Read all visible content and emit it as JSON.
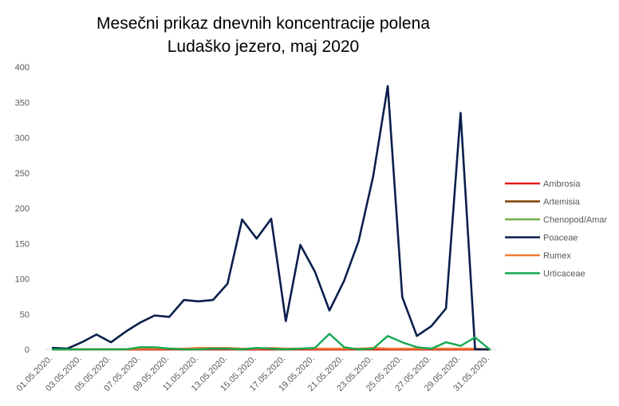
{
  "chart_data": {
    "type": "line",
    "title": [
      "Mesečni prikaz dnevnih koncentracije polena",
      "Ludaško jezero, maj 2020"
    ],
    "xlabel": "",
    "ylabel": "",
    "ylim": [
      0,
      400
    ],
    "yticks": [
      0,
      50,
      100,
      150,
      200,
      250,
      300,
      350,
      400
    ],
    "grid": false,
    "legend_position": "right",
    "x": [
      "01.05.2020.",
      "02.05.2020.",
      "03.05.2020.",
      "04.05.2020.",
      "05.05.2020.",
      "06.05.2020.",
      "07.05.2020.",
      "08.05.2020.",
      "09.05.2020.",
      "10.05.2020.",
      "11.05.2020.",
      "12.05.2020.",
      "13.05.2020.",
      "14.05.2020.",
      "15.05.2020.",
      "16.05.2020.",
      "17.05.2020.",
      "18.05.2020.",
      "19.05.2020.",
      "20.05.2020.",
      "21.05.2020.",
      "22.05.2020.",
      "23.05.2020.",
      "24.05.2020.",
      "25.05.2020.",
      "26.05.2020.",
      "27.05.2020.",
      "28.05.2020.",
      "29.05.2020.",
      "30.05.2020.",
      "31.05.2020."
    ],
    "xtick_labels": [
      "01.05.2020.",
      "03.05.2020.",
      "05.05.2020.",
      "07.05.2020.",
      "09.05.2020.",
      "11.05.2020.",
      "13.05.2020.",
      "15.05.2020.",
      "17.05.2020.",
      "19.05.2020.",
      "21.05.2020.",
      "23.05.2020.",
      "25.05.2020.",
      "27.05.2020.",
      "29.05.2020.",
      "31.05.2020."
    ],
    "series": [
      {
        "name": "Ambrosia",
        "color": "#e31a1c",
        "values": [
          0,
          0,
          0,
          0,
          0,
          0,
          0,
          0,
          0,
          0,
          0,
          0,
          0,
          0,
          0,
          0,
          0,
          0,
          0,
          0,
          0,
          0,
          0,
          0,
          0,
          0,
          0,
          0,
          0,
          0,
          0
        ]
      },
      {
        "name": "Artemisia",
        "color": "#7f3f00",
        "values": [
          0,
          0,
          0,
          0,
          0,
          0,
          0,
          0,
          0,
          0,
          0,
          0,
          0,
          0,
          0,
          0,
          0,
          0,
          0,
          0,
          0,
          0,
          0,
          0,
          0,
          0,
          0,
          0,
          0,
          0,
          0
        ]
      },
      {
        "name": "Chenopod/Amar",
        "color": "#70ad47",
        "values": [
          0,
          0,
          0,
          0,
          0,
          0,
          0,
          0,
          0,
          0,
          0,
          0,
          0,
          0,
          0,
          0,
          0,
          0,
          0,
          0,
          0,
          0,
          0,
          0,
          0,
          0,
          0,
          0,
          0,
          0,
          0
        ]
      },
      {
        "name": "Poaceae",
        "color": "#0b1f4d",
        "values": [
          2,
          1,
          10,
          21,
          10,
          25,
          38,
          48,
          46,
          70,
          68,
          70,
          93,
          184,
          157,
          185,
          40,
          148,
          110,
          55,
          97,
          153,
          245,
          373,
          74,
          19,
          33,
          58,
          335,
          0,
          0
        ]
      },
      {
        "name": "Rumex",
        "color": "#ed7d31",
        "values": [
          0,
          0,
          0,
          0,
          0,
          0,
          1,
          1,
          1,
          1,
          2,
          2,
          2,
          1,
          1,
          2,
          1,
          1,
          1,
          1,
          1,
          1,
          2,
          1,
          1,
          1,
          1,
          1,
          1,
          1,
          0
        ]
      },
      {
        "name": "Urticaceae",
        "color": "#14a850",
        "values": [
          0,
          0,
          0,
          0,
          0,
          0,
          3,
          3,
          1,
          0,
          0,
          1,
          1,
          0,
          2,
          1,
          0,
          1,
          2,
          22,
          3,
          0,
          1,
          19,
          10,
          3,
          1,
          10,
          5,
          17,
          0
        ]
      }
    ]
  }
}
